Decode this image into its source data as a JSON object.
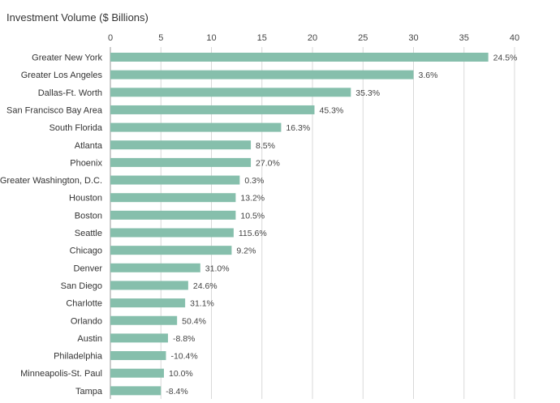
{
  "chart_data": {
    "type": "bar",
    "orientation": "horizontal",
    "title": "Investment Volume ($ Billions)",
    "xlim": [
      0,
      40
    ],
    "x_ticks": [
      "0",
      "5",
      "10",
      "15",
      "20",
      "25",
      "30",
      "35",
      "40"
    ],
    "grid": "vertical",
    "bar_color": "#86bfac",
    "categories": [
      "Greater New York",
      "Greater Los Angeles",
      "Dallas-Ft. Worth",
      "San Francisco Bay Area",
      "South Florida",
      "Atlanta",
      "Phoenix",
      "Greater Washington, D.C.",
      "Houston",
      "Boston",
      "Seattle",
      "Chicago",
      "Denver",
      "San Diego",
      "Charlotte",
      "Orlando",
      "Austin",
      "Philadelphia",
      "Minneapolis-St. Paul",
      "Tampa"
    ],
    "values": [
      37.4,
      30.0,
      23.8,
      20.2,
      16.9,
      13.9,
      13.9,
      12.8,
      12.4,
      12.4,
      12.2,
      12.0,
      8.9,
      7.7,
      7.4,
      6.6,
      5.7,
      5.5,
      5.3,
      5.0
    ],
    "data_labels": [
      "24.5%",
      "3.6%",
      "35.3%",
      "45.3%",
      "16.3%",
      "8.5%",
      "27.0%",
      "0.3%",
      "13.2%",
      "10.5%",
      "115.6%",
      "9.2%",
      "31.0%",
      "24.6%",
      "31.1%",
      "50.4%",
      "-8.8%",
      "-10.4%",
      "10.0%",
      "-8.4%"
    ]
  }
}
